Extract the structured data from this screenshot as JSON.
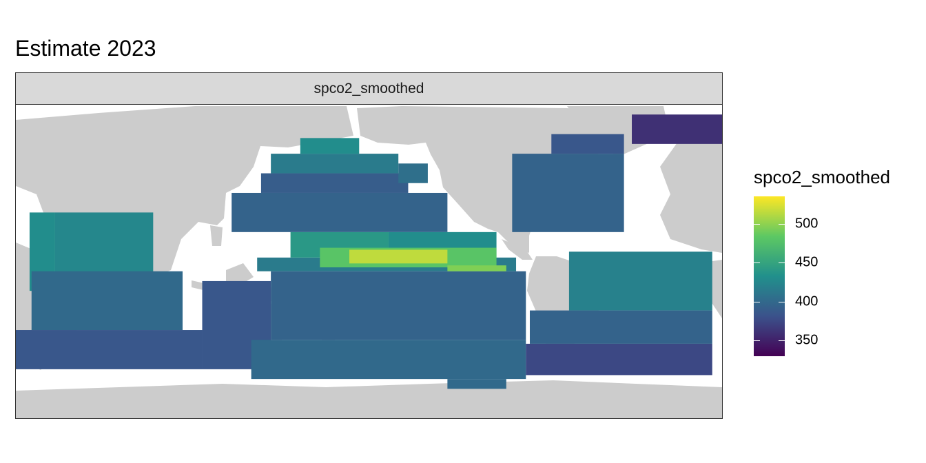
{
  "title": "Estimate 2023",
  "facet_label": "spco2_smoothed",
  "legend": {
    "title": "spco2_smoothed",
    "ticks": [
      {
        "label": "500",
        "value": 500
      },
      {
        "label": "450",
        "value": 450
      },
      {
        "label": "400",
        "value": 400
      },
      {
        "label": "350",
        "value": 350
      }
    ],
    "range": [
      330,
      535
    ],
    "palette": "viridis",
    "gradient": [
      "#440154",
      "#3b528b",
      "#21908c",
      "#5dc863",
      "#fde725"
    ]
  },
  "colors": {
    "land": "#cccccc",
    "ocean_no_data": "#ffffff",
    "strip": "#d9d9d9"
  },
  "chart_data": {
    "type": "heatmap",
    "variable": "spco2_smoothed",
    "xlim": [
      30,
      390
    ],
    "ylim": [
      -80,
      80
    ],
    "value_range": [
      330,
      535
    ],
    "regions": [
      {
        "lon": [
          37,
          50
        ],
        "lat": [
          25,
          -15
        ],
        "value": 430
      },
      {
        "lon": [
          50,
          100
        ],
        "lat": [
          25,
          -35
        ],
        "value": 425
      },
      {
        "lon": [
          38,
          115
        ],
        "lat": [
          -5,
          -35
        ],
        "value": 400
      },
      {
        "lon": [
          30,
          125
        ],
        "lat": [
          -35,
          -55
        ],
        "value": 385
      },
      {
        "lon": [
          125,
          160
        ],
        "lat": [
          -10,
          -55
        ],
        "value": 385
      },
      {
        "lon": [
          160,
          290
        ],
        "lat": [
          -5,
          -40
        ],
        "value": 395
      },
      {
        "lon": [
          150,
          290
        ],
        "lat": [
          -40,
          -60
        ],
        "value": 400
      },
      {
        "lon": [
          250,
          280
        ],
        "lat": [
          -60,
          -65
        ],
        "value": 400
      },
      {
        "lon": [
          153,
          285
        ],
        "lat": [
          2,
          -5
        ],
        "value": 415
      },
      {
        "lon": [
          170,
          220
        ],
        "lat": [
          15,
          2
        ],
        "value": 440
      },
      {
        "lon": [
          220,
          275
        ],
        "lat": [
          15,
          2
        ],
        "value": 430
      },
      {
        "lon": [
          185,
          275
        ],
        "lat": [
          7,
          -3
        ],
        "value": 480
      },
      {
        "lon": [
          200,
          250
        ],
        "lat": [
          6,
          -1
        ],
        "value": 515
      },
      {
        "lon": [
          250,
          280
        ],
        "lat": [
          -2,
          -5
        ],
        "value": 495
      },
      {
        "lon": [
          140,
          250
        ],
        "lat": [
          35,
          15
        ],
        "value": 395
      },
      {
        "lon": [
          155,
          230
        ],
        "lat": [
          45,
          35
        ],
        "value": 390
      },
      {
        "lon": [
          160,
          225
        ],
        "lat": [
          55,
          45
        ],
        "value": 415
      },
      {
        "lon": [
          175,
          205
        ],
        "lat": [
          63,
          55
        ],
        "value": 430
      },
      {
        "lon": [
          225,
          240
        ],
        "lat": [
          50,
          40
        ],
        "value": 405
      },
      {
        "lon": [
          303,
          340
        ],
        "lat": [
          65,
          55
        ],
        "value": 385
      },
      {
        "lon": [
          283,
          340
        ],
        "lat": [
          55,
          15
        ],
        "value": 395
      },
      {
        "lon": [
          312,
          385
        ],
        "lat": [
          5,
          -25
        ],
        "value": 420
      },
      {
        "lon": [
          292,
          385
        ],
        "lat": [
          -25,
          -42
        ],
        "value": 395
      },
      {
        "lon": [
          290,
          385
        ],
        "lat": [
          -42,
          -58
        ],
        "value": 375
      },
      {
        "lon": [
          344,
          390
        ],
        "lat": [
          75,
          60
        ],
        "value": 360
      }
    ]
  }
}
